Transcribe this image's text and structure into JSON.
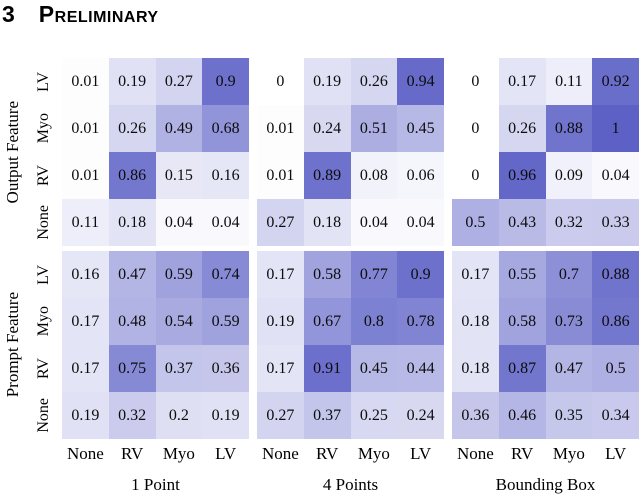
{
  "heading": {
    "section_number": "3",
    "section_title": "Preliminary"
  },
  "chart_data": {
    "type": "heatmap",
    "title": "",
    "colormap": {
      "min_color": "#ffffff",
      "max_color": "#5d61c6",
      "vmin": 0,
      "vmax": 1
    },
    "col_labels": [
      "None",
      "RV",
      "Myo",
      "LV"
    ],
    "row_blocks": [
      {
        "label": "Output Feature",
        "rows": [
          "LV",
          "Myo",
          "RV",
          "None"
        ]
      },
      {
        "label": "Prompt Feature",
        "rows": [
          "LV",
          "Myo",
          "RV",
          "None"
        ]
      }
    ],
    "groups": [
      {
        "title": "1 Point",
        "output": [
          [
            0.01,
            0.19,
            0.27,
            0.9
          ],
          [
            0.01,
            0.26,
            0.49,
            0.68
          ],
          [
            0.01,
            0.86,
            0.15,
            0.16
          ],
          [
            0.11,
            0.18,
            0.04,
            0.04
          ]
        ],
        "prompt": [
          [
            0.16,
            0.47,
            0.59,
            0.74
          ],
          [
            0.17,
            0.48,
            0.54,
            0.59
          ],
          [
            0.17,
            0.75,
            0.37,
            0.36
          ],
          [
            0.19,
            0.32,
            0.2,
            0.19
          ]
        ]
      },
      {
        "title": "4 Points",
        "output": [
          [
            0,
            0.19,
            0.26,
            0.94
          ],
          [
            0.01,
            0.24,
            0.51,
            0.45
          ],
          [
            0.01,
            0.89,
            0.08,
            0.06
          ],
          [
            0.27,
            0.18,
            0.04,
            0.04
          ]
        ],
        "prompt": [
          [
            0.17,
            0.58,
            0.77,
            0.9
          ],
          [
            0.19,
            0.67,
            0.8,
            0.78
          ],
          [
            0.17,
            0.91,
            0.45,
            0.44
          ],
          [
            0.27,
            0.37,
            0.25,
            0.24
          ]
        ]
      },
      {
        "title": "Bounding Box",
        "output": [
          [
            0,
            0.17,
            0.11,
            0.92
          ],
          [
            0,
            0.26,
            0.88,
            1
          ],
          [
            0,
            0.96,
            0.09,
            0.04
          ],
          [
            0.5,
            0.43,
            0.32,
            0.33
          ]
        ],
        "prompt": [
          [
            0.17,
            0.55,
            0.7,
            0.88
          ],
          [
            0.18,
            0.58,
            0.73,
            0.86
          ],
          [
            0.18,
            0.87,
            0.47,
            0.5
          ],
          [
            0.36,
            0.46,
            0.35,
            0.34
          ]
        ]
      }
    ]
  }
}
